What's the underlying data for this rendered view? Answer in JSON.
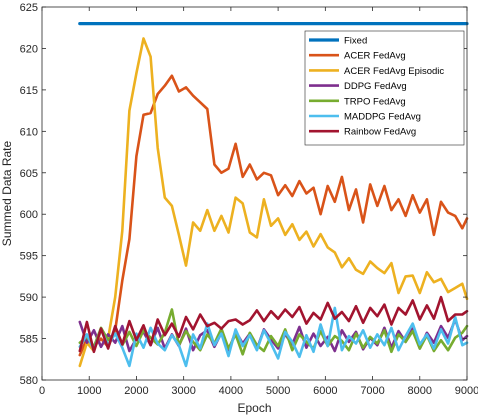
{
  "chart_data": {
    "type": "line",
    "xlabel": "Epoch",
    "ylabel": "Summed Data Rate",
    "xlim": [
      0,
      9000
    ],
    "ylim": [
      580,
      625
    ],
    "xticks": [
      0,
      1000,
      2000,
      3000,
      4000,
      5000,
      6000,
      7000,
      8000,
      9000
    ],
    "yticks": [
      580,
      585,
      590,
      595,
      600,
      605,
      610,
      615,
      620,
      625
    ],
    "grid": false,
    "legend_position": "top-right",
    "series": [
      {
        "name": "Fixed",
        "color": "#0072BD",
        "x": [
          800,
          9000
        ],
        "y": [
          623,
          623
        ]
      },
      {
        "name": "ACER FedAvg",
        "color": "#D95319",
        "x": [
          800,
          950,
          1100,
          1250,
          1400,
          1550,
          1700,
          1850,
          2000,
          2150,
          2300,
          2450,
          2600,
          2750,
          2900,
          3050,
          3200,
          3350,
          3500,
          3650,
          3800,
          3950,
          4100,
          4250,
          4400,
          4550,
          4700,
          4850,
          5000,
          5150,
          5300,
          5450,
          5600,
          5750,
          5900,
          6050,
          6200,
          6350,
          6500,
          6650,
          6800,
          6950,
          7100,
          7250,
          7400,
          7550,
          7700,
          7850,
          8000,
          8150,
          8300,
          8450,
          8600,
          8750,
          8900,
          9000
        ],
        "y": [
          583,
          585,
          584,
          585,
          584,
          586,
          592,
          597,
          607,
          612,
          612.2,
          614.5,
          615.5,
          616.7,
          614.8,
          615.3,
          614.3,
          613.5,
          612.7,
          606,
          605,
          605.5,
          608.5,
          604.5,
          606,
          604.2,
          605,
          604.7,
          602.3,
          603.5,
          602.2,
          604,
          602.5,
          603.2,
          600,
          603.4,
          601.5,
          604.5,
          600.5,
          603,
          599,
          603.6,
          601,
          603.4,
          600.5,
          601.8,
          599.8,
          602.3,
          600.2,
          601.8,
          597.5,
          601.5,
          600.2,
          599.8,
          598.3,
          599.5
        ]
      },
      {
        "name": "ACER FedAvg Episodic",
        "color": "#EDB120",
        "x": [
          800,
          950,
          1100,
          1250,
          1400,
          1550,
          1700,
          1850,
          2000,
          2150,
          2300,
          2450,
          2600,
          2750,
          2900,
          3050,
          3200,
          3350,
          3500,
          3650,
          3800,
          3950,
          4100,
          4250,
          4400,
          4550,
          4700,
          4850,
          5000,
          5150,
          5300,
          5450,
          5600,
          5750,
          5900,
          6050,
          6200,
          6350,
          6500,
          6650,
          6800,
          6950,
          7100,
          7250,
          7400,
          7550,
          7700,
          7850,
          8000,
          8150,
          8300,
          8450,
          8600,
          8750,
          8900,
          9000
        ],
        "y": [
          581.7,
          584.5,
          583.5,
          586,
          585,
          590,
          598,
          612.5,
          617,
          621.2,
          619,
          608,
          602,
          601,
          597.5,
          593.8,
          599,
          598,
          600.5,
          598,
          599.8,
          597.8,
          602,
          601.3,
          597.8,
          597.2,
          601.8,
          598.6,
          599.5,
          597.5,
          598.8,
          596.9,
          597.9,
          596.1,
          597.6,
          596,
          595.4,
          593.6,
          594.7,
          593.3,
          592.8,
          594.3,
          593.5,
          592.9,
          594.1,
          590.5,
          592.5,
          592.6,
          590.5,
          593,
          591.8,
          592.2,
          590.6,
          591.1,
          591.6,
          589.8
        ]
      },
      {
        "name": "DDPG FedAvg",
        "color": "#7E2F8E",
        "x": [
          800,
          950,
          1100,
          1250,
          1400,
          1550,
          1700,
          1850,
          2000,
          2150,
          2300,
          2450,
          2600,
          2750,
          2900,
          3050,
          3200,
          3350,
          3500,
          3650,
          3800,
          3950,
          4100,
          4250,
          4400,
          4550,
          4700,
          4850,
          5000,
          5150,
          5300,
          5450,
          5600,
          5750,
          5900,
          6050,
          6200,
          6350,
          6500,
          6650,
          6800,
          6950,
          7100,
          7250,
          7400,
          7550,
          7700,
          7850,
          8000,
          8150,
          8300,
          8450,
          8600,
          8750,
          8900,
          9000
        ],
        "y": [
          587,
          584.5,
          586,
          584,
          585.5,
          584.5,
          586.5,
          583.5,
          585,
          585.8,
          584.2,
          586.3,
          583.8,
          585.5,
          584.1,
          586.2,
          583.6,
          585.4,
          586,
          584,
          585.7,
          583.4,
          585.9,
          584.4,
          585.6,
          583.7,
          586.1,
          584.9,
          583.8,
          585.5,
          584.3,
          586.4,
          583.9,
          585.6,
          584.1,
          585.2,
          583.5,
          586,
          584.6,
          585.8,
          583.7,
          585.1,
          584.2,
          586.3,
          583.9,
          585.9,
          584.6,
          586.2,
          583.8,
          585.7,
          584.5,
          586.5,
          585.1,
          587.3,
          584.8,
          585.3
        ]
      },
      {
        "name": "TRPO FedAvg",
        "color": "#77AC30",
        "x": [
          800,
          950,
          1100,
          1250,
          1400,
          1550,
          1700,
          1850,
          2000,
          2150,
          2300,
          2450,
          2600,
          2750,
          2900,
          3050,
          3200,
          3350,
          3500,
          3650,
          3800,
          3950,
          4100,
          4250,
          4400,
          4550,
          4700,
          4850,
          5000,
          5150,
          5300,
          5450,
          5600,
          5750,
          5900,
          6050,
          6200,
          6350,
          6500,
          6650,
          6800,
          6950,
          7100,
          7250,
          7400,
          7550,
          7700,
          7850,
          8000,
          8150,
          8300,
          8450,
          8600,
          8750,
          8900,
          9000
        ],
        "y": [
          584.5,
          585.2,
          584,
          586.3,
          584.8,
          585.6,
          584.2,
          585.8,
          584.1,
          586,
          585.1,
          584.3,
          585.7,
          588.5,
          584.2,
          585.9,
          584.6,
          583.6,
          585.5,
          584.4,
          586.2,
          583.8,
          585.5,
          583.1,
          585.7,
          584.2,
          583.5,
          585.3,
          584.1,
          586.1,
          583.6,
          585.5,
          584.6,
          583.8,
          585.9,
          584.1,
          585.3,
          584.7,
          583.6,
          585.6,
          583.9,
          585.2,
          584.4,
          586,
          583.4,
          585.5,
          584.6,
          585.9,
          583.8,
          585.4,
          583.5,
          584.8,
          583.6,
          585.1,
          585.7,
          586.5
        ]
      },
      {
        "name": "MADDPG FedAvg",
        "color": "#4DBEEE",
        "x": [
          800,
          950,
          1100,
          1250,
          1400,
          1550,
          1700,
          1850,
          2000,
          2150,
          2300,
          2450,
          2600,
          2750,
          2900,
          3050,
          3200,
          3350,
          3500,
          3650,
          3800,
          3950,
          4100,
          4250,
          4400,
          4550,
          4700,
          4850,
          5000,
          5150,
          5300,
          5450,
          5600,
          5750,
          5900,
          6050,
          6200,
          6350,
          6500,
          6650,
          6800,
          6950,
          7100,
          7250,
          7400,
          7550,
          7700,
          7850,
          8000,
          8150,
          8300,
          8450,
          8600,
          8750,
          8900,
          9000
        ],
        "y": [
          584,
          585.5,
          583.6,
          586.1,
          584.2,
          585.6,
          583.9,
          581.7,
          585.6,
          583.9,
          586.3,
          584.4,
          583.6,
          585.4,
          584.2,
          581.7,
          585.5,
          583.8,
          586.8,
          584.2,
          585.6,
          582.9,
          586.1,
          584.1,
          585.4,
          583.6,
          586,
          584.4,
          582.6,
          585.8,
          584.6,
          582.8,
          585.4,
          583.4,
          586.7,
          584.1,
          588.7,
          583.6,
          585.3,
          584.4,
          586,
          583.9,
          585.5,
          584.2,
          586.3,
          583.6,
          585.3,
          586.8,
          584.3,
          585.5,
          583.8,
          586.1,
          584.4,
          587.6,
          584.2,
          584.5
        ]
      },
      {
        "name": "Rainbow FedAvg",
        "color": "#A2142F",
        "x": [
          800,
          950,
          1100,
          1250,
          1400,
          1550,
          1700,
          1850,
          2000,
          2150,
          2300,
          2450,
          2600,
          2750,
          2900,
          3050,
          3200,
          3350,
          3500,
          3650,
          3800,
          3950,
          4100,
          4250,
          4400,
          4550,
          4700,
          4850,
          5000,
          5150,
          5300,
          5450,
          5600,
          5750,
          5900,
          6050,
          6200,
          6350,
          6500,
          6650,
          6800,
          6950,
          7100,
          7250,
          7400,
          7550,
          7700,
          7850,
          8000,
          8150,
          8300,
          8450,
          8600,
          8750,
          8900,
          9000
        ],
        "y": [
          583.5,
          587,
          583.4,
          586.2,
          583.8,
          586.5,
          584.3,
          587.1,
          584.8,
          586.6,
          584.2,
          587.3,
          585.4,
          586.8,
          585.2,
          587.6,
          586.1,
          587.9,
          586.5,
          586.9,
          586.2,
          587.1,
          587.3,
          586.7,
          587.2,
          588.4,
          587.1,
          588.3,
          587.4,
          588.5,
          587.6,
          588.8,
          586.8,
          588.1,
          587.3,
          589.3,
          587.4,
          588.2,
          587.1,
          588.9,
          586.9,
          588.7,
          587.7,
          589.1,
          586.7,
          588.7,
          587.9,
          589.6,
          587.3,
          589,
          587.4,
          590,
          587.1,
          587.9,
          587.9,
          588.3
        ]
      }
    ]
  }
}
